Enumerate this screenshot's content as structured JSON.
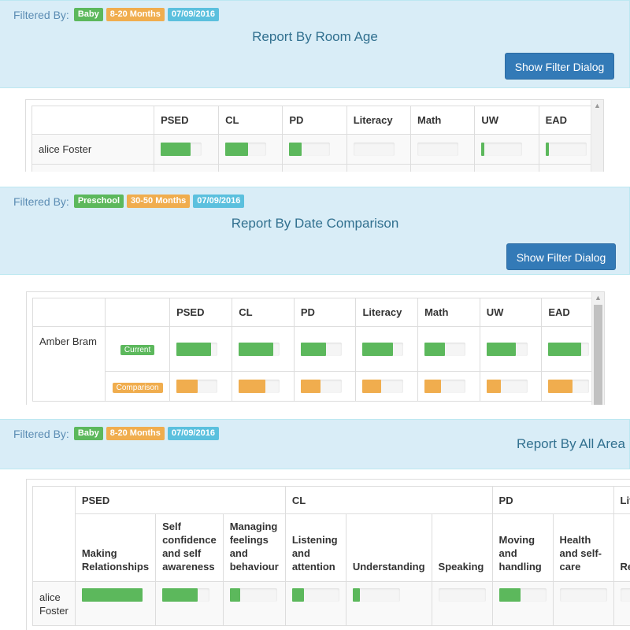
{
  "colors": {
    "green": "#5cb85c",
    "orange": "#f0ad4e",
    "blue": "#5bc0de",
    "header_bg": "#d9edf7",
    "primary": "#337ab7"
  },
  "panels": [
    {
      "filter_label": "Filtered By:",
      "filters": [
        "Baby",
        "8-20 Months",
        "07/09/2016"
      ],
      "title": "Report By Room Age",
      "button": "Show Filter Dialog",
      "columns": [
        "PSED",
        "CL",
        "PD",
        "Literacy",
        "Math",
        "UW",
        "EAD"
      ],
      "rows": [
        {
          "name": "alice Foster",
          "progress": [
            0.72,
            0.55,
            0.3,
            0.0,
            0.0,
            0.08,
            0.08
          ]
        }
      ]
    },
    {
      "filter_label": "Filtered By:",
      "filters": [
        "Preschool",
        "30-50 Months",
        "07/09/2016"
      ],
      "title": "Report By Date Comparison",
      "button": "Show Filter Dialog",
      "columns": [
        "PSED",
        "CL",
        "PD",
        "Literacy",
        "Math",
        "UW",
        "EAD"
      ],
      "rows": [
        {
          "name": "Amber Bram",
          "current_label": "Current",
          "current": [
            0.85,
            0.85,
            0.62,
            0.75,
            0.5,
            0.72,
            0.8
          ],
          "comparison_label": "Comparison",
          "comparison": [
            0.52,
            0.65,
            0.48,
            0.45,
            0.4,
            0.35,
            0.58
          ]
        }
      ]
    },
    {
      "filter_label": "Filtered By:",
      "filters": [
        "Baby",
        "8-20 Months",
        "07/09/2016"
      ],
      "title": "Report By All Area",
      "groups": [
        "PSED",
        "CL",
        "PD",
        "Literacy"
      ],
      "subcolumns": [
        "Making Relationships",
        "Self confidence and self awareness",
        "Managing feelings and behaviour",
        "Listening and attention",
        "Understanding",
        "Speaking",
        "Moving and handling",
        "Health and self-care",
        "Reading"
      ],
      "rows": [
        {
          "name": "alice Foster",
          "progress": [
            1.0,
            0.75,
            0.22,
            0.25,
            0.15,
            0.0,
            0.45,
            0.0,
            0.0
          ]
        }
      ]
    }
  ]
}
